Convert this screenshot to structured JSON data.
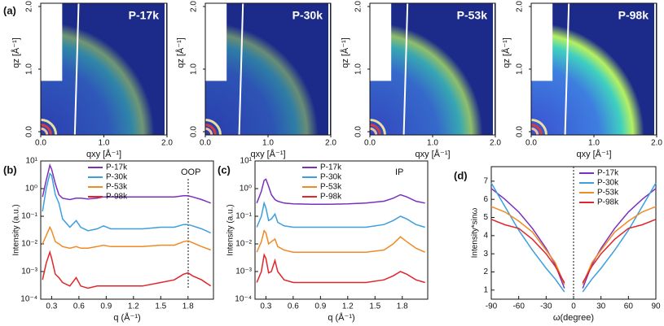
{
  "chart_data": [
    {
      "type": "image",
      "panel": "(a)",
      "title": "P-17k",
      "x_label": "qxy [Å⁻¹]",
      "y_label": "qz [Å⁻¹]",
      "xlim": [
        0,
        2
      ],
      "ylim": [
        0,
        2
      ],
      "xticks": [
        {
          "value": 0,
          "label": "0.0"
        },
        {
          "value": 1,
          "label": "1.0"
        },
        {
          "value": 2,
          "label": "2.0"
        }
      ],
      "yticks": [
        {
          "value": 0,
          "label": "0.0"
        },
        {
          "value": 1,
          "label": "1.0"
        },
        {
          "value": 2,
          "label": "2.0"
        }
      ]
    },
    {
      "type": "image",
      "title": "P-30k",
      "x_label": "qxy [Å⁻¹]",
      "y_label": "qz [Å⁻¹]",
      "xlim": [
        0,
        2
      ],
      "ylim": [
        0,
        2
      ],
      "xticks": [
        {
          "value": 0,
          "label": "0.0"
        },
        {
          "value": 1,
          "label": "1.0"
        },
        {
          "value": 2,
          "label": "2.0"
        }
      ],
      "yticks": [
        {
          "value": 0,
          "label": "0.0"
        },
        {
          "value": 1,
          "label": "1.0"
        },
        {
          "value": 2,
          "label": "2.0"
        }
      ]
    },
    {
      "type": "image",
      "title": "P-53k",
      "x_label": "qxy [Å⁻¹]",
      "y_label": "qz [Å⁻¹]",
      "xlim": [
        0,
        2
      ],
      "ylim": [
        0,
        2
      ],
      "xticks": [
        {
          "value": 0,
          "label": "0.0"
        },
        {
          "value": 1,
          "label": "1.0"
        },
        {
          "value": 2,
          "label": "2.0"
        }
      ],
      "yticks": [
        {
          "value": 0,
          "label": "0.0"
        },
        {
          "value": 1,
          "label": "1.0"
        },
        {
          "value": 2,
          "label": "2.0"
        }
      ]
    },
    {
      "type": "image",
      "title": "P-98k",
      "x_label": "qxy [Å⁻¹]",
      "y_label": "qz [Å⁻¹]",
      "xlim": [
        0,
        2
      ],
      "ylim": [
        0,
        2
      ],
      "xticks": [
        {
          "value": 0,
          "label": "0.0"
        },
        {
          "value": 1,
          "label": "1.0"
        },
        {
          "value": 2,
          "label": "2.0"
        }
      ],
      "yticks": [
        {
          "value": 0,
          "label": "0.0"
        },
        {
          "value": 1,
          "label": "1.0"
        },
        {
          "value": 2,
          "label": "2.0"
        }
      ]
    },
    {
      "type": "line",
      "panel": "(b)",
      "annotation": "OOP",
      "x_label": "q (Å⁻¹)",
      "y_label": "Intensity (a.u.)",
      "log_y": true,
      "xlim": [
        0.18,
        2.08
      ],
      "ylim": [
        0.0001,
        10
      ],
      "xticks": [
        0.3,
        0.6,
        0.9,
        1.2,
        1.5,
        1.8
      ],
      "yticks": [
        {
          "value": 10,
          "label": "10¹"
        },
        {
          "value": 1,
          "label": "10⁰"
        },
        {
          "value": 0.1,
          "label": "10⁻¹"
        },
        {
          "value": 0.01,
          "label": "10⁻²"
        },
        {
          "value": 0.001,
          "label": "10⁻³"
        },
        {
          "value": 0.0001,
          "label": "10⁻⁴"
        }
      ],
      "x": [
        0.2,
        0.24,
        0.28,
        0.3,
        0.34,
        0.38,
        0.42,
        0.5,
        0.57,
        0.62,
        0.7,
        0.8,
        0.87,
        0.95,
        1.1,
        1.3,
        1.5,
        1.65,
        1.75,
        1.8,
        1.85,
        1.95,
        2.05
      ],
      "series": [
        {
          "name": "P-17k",
          "color": "#7b2fbf",
          "values": [
            0.5,
            2,
            7,
            5,
            1.5,
            0.6,
            0.45,
            0.4,
            0.45,
            0.45,
            0.42,
            0.45,
            0.5,
            0.5,
            0.5,
            0.5,
            0.5,
            0.5,
            0.55,
            0.55,
            0.5,
            0.4,
            0.3
          ]
        },
        {
          "name": "P-30k",
          "color": "#3b9fe0",
          "values": [
            0.15,
            1,
            3.5,
            3,
            0.6,
            0.3,
            0.08,
            0.04,
            0.07,
            0.04,
            0.03,
            0.035,
            0.045,
            0.035,
            0.035,
            0.035,
            0.04,
            0.04,
            0.05,
            0.05,
            0.045,
            0.035,
            0.025
          ]
        },
        {
          "name": "P-53k",
          "color": "#f08a24",
          "values": [
            0.01,
            0.02,
            0.04,
            0.03,
            0.012,
            0.01,
            0.008,
            0.007,
            0.008,
            0.007,
            0.007,
            0.008,
            0.009,
            0.008,
            0.008,
            0.008,
            0.009,
            0.009,
            0.012,
            0.013,
            0.011,
            0.008,
            0.006
          ]
        },
        {
          "name": "P-98k",
          "color": "#e0262a",
          "values": [
            0.0005,
            0.002,
            0.005,
            0.003,
            0.0008,
            0.0006,
            0.0004,
            0.0003,
            0.0006,
            0.0003,
            0.00025,
            0.0003,
            0.0003,
            0.0003,
            0.0003,
            0.0003,
            0.0004,
            0.0005,
            0.0008,
            0.0009,
            0.0007,
            0.0005,
            0.0003
          ]
        }
      ]
    },
    {
      "type": "line",
      "panel": "(c)",
      "annotation": "IP",
      "x_label": "q (Å⁻¹)",
      "y_label": "Intensity (a.u.)",
      "log_y": true,
      "xlim": [
        0.18,
        2.08
      ],
      "ylim": [
        0.0001,
        10
      ],
      "xticks": [
        0.3,
        0.6,
        0.9,
        1.2,
        1.5,
        1.8
      ],
      "yticks": [
        {
          "value": 10,
          "label": "10¹"
        },
        {
          "value": 1,
          "label": "10⁰"
        },
        {
          "value": 0.1,
          "label": "10⁻¹"
        },
        {
          "value": 0.01,
          "label": "10⁻²"
        },
        {
          "value": 0.001,
          "label": "10⁻³"
        },
        {
          "value": 0.0001,
          "label": "10⁻⁴"
        }
      ],
      "x": [
        0.2,
        0.25,
        0.28,
        0.3,
        0.33,
        0.36,
        0.4,
        0.43,
        0.5,
        0.6,
        0.8,
        1.0,
        1.2,
        1.4,
        1.6,
        1.7,
        1.78,
        1.85,
        1.95,
        2.05
      ],
      "series": [
        {
          "name": "P-17k",
          "color": "#7b2fbf",
          "values": [
            0.3,
            0.8,
            2,
            2.2,
            1.2,
            0.6,
            0.4,
            0.35,
            0.3,
            0.28,
            0.27,
            0.27,
            0.28,
            0.3,
            0.35,
            0.45,
            0.6,
            0.5,
            0.35,
            0.3
          ]
        },
        {
          "name": "P-30k",
          "color": "#3b9fe0",
          "values": [
            0.04,
            0.1,
            0.3,
            0.2,
            0.07,
            0.08,
            0.12,
            0.06,
            0.045,
            0.04,
            0.04,
            0.04,
            0.04,
            0.04,
            0.05,
            0.07,
            0.1,
            0.08,
            0.05,
            0.04
          ]
        },
        {
          "name": "P-53k",
          "color": "#f08a24",
          "values": [
            0.005,
            0.012,
            0.03,
            0.025,
            0.01,
            0.012,
            0.015,
            0.008,
            0.006,
            0.005,
            0.005,
            0.005,
            0.005,
            0.005,
            0.006,
            0.01,
            0.018,
            0.012,
            0.007,
            0.005
          ]
        },
        {
          "name": "P-98k",
          "color": "#e0262a",
          "values": [
            0.0004,
            0.001,
            0.004,
            0.003,
            0.0009,
            0.001,
            0.0025,
            0.001,
            0.0005,
            0.0004,
            0.0004,
            0.0004,
            0.0004,
            0.0004,
            0.0005,
            0.0007,
            0.001,
            0.0008,
            0.0005,
            0.0004
          ]
        }
      ]
    },
    {
      "type": "line",
      "panel": "(d)",
      "x_label": "ω(degree)",
      "y_label": "Intensity*sinω",
      "log_y": false,
      "xlim": [
        -90,
        90
      ],
      "ylim": [
        0.5,
        7.8
      ],
      "xticks": [
        -90,
        -60,
        -30,
        0,
        30,
        60,
        90
      ],
      "yticks": [
        1,
        2,
        3,
        4,
        5,
        6,
        7
      ],
      "x": [
        -90,
        -75,
        -60,
        -45,
        -30,
        -20,
        -10,
        0,
        10,
        20,
        30,
        45,
        60,
        75,
        90
      ],
      "series": [
        {
          "name": "P-17k",
          "color": "#7b2fbf",
          "values": [
            6.6,
            6.0,
            5.3,
            4.4,
            3.3,
            2.4,
            1.1,
            null,
            1.1,
            2.4,
            3.3,
            4.4,
            5.3,
            6.0,
            6.6
          ]
        },
        {
          "name": "P-30k",
          "color": "#3b9fe0",
          "values": [
            6.9,
            5.6,
            4.3,
            3.2,
            2.2,
            1.6,
            0.9,
            null,
            0.9,
            1.6,
            2.2,
            3.2,
            4.3,
            5.6,
            6.9
          ]
        },
        {
          "name": "P-53k",
          "color": "#f08a24",
          "values": [
            5.6,
            5.3,
            4.8,
            4.2,
            3.2,
            2.5,
            1.3,
            null,
            1.3,
            2.5,
            3.2,
            4.2,
            4.8,
            5.3,
            5.6
          ]
        },
        {
          "name": "P-98k",
          "color": "#e0262a",
          "values": [
            4.9,
            4.6,
            4.4,
            3.8,
            3.0,
            2.3,
            1.4,
            null,
            1.4,
            2.3,
            3.0,
            3.8,
            4.4,
            4.6,
            4.9
          ]
        }
      ]
    }
  ]
}
